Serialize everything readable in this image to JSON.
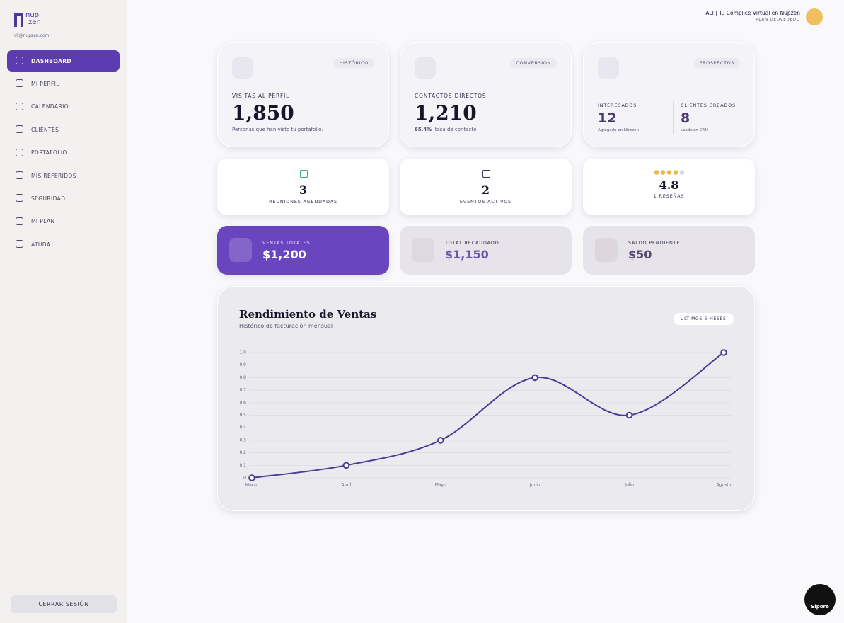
{
  "sidebar": {
    "logo": [
      "nup",
      "zen"
    ],
    "email": "cli@nupzen.com",
    "menu": [
      "DASHBOARD",
      "MI PERFIL",
      "CALENDARIO",
      "CLIENTES",
      "PORTAFOLIO",
      "MIS REFERIDOS",
      "SEGURIDAD",
      "MI PLAN",
      "ATUDA"
    ],
    "logout": "CERRAR SESIÓN"
  },
  "header": {
    "title": "ALI | Tu Cómplice Virtual en Nupzen",
    "plan": "PLAN DEDVEDEDO"
  },
  "top_cards": [
    {
      "badge": "HISTÓRICO",
      "label": "VISITAS AL PERFIL",
      "value": "1,850",
      "note": "Personas que han visto tu portafolio."
    },
    {
      "badge": "CONVERSIÓN",
      "label": "CONTACTOS DIRECTOS",
      "value": "1,210",
      "note_strong": "65.4%",
      "note": "tasa de contacto"
    },
    {
      "badge": "PROSPECTOS",
      "items": [
        {
          "label": "INTERESADOS",
          "value": "12",
          "note": "Agregado en Nirpzen"
        },
        {
          "label": "CLIENTES CREADOS",
          "value": "8",
          "note": "Leads en CRM"
        }
      ]
    }
  ],
  "mid_cards": [
    {
      "value": "3",
      "label": "REUNIONES AGENDADAS"
    },
    {
      "value": "2",
      "label": "EVENTOS ACTIVOS"
    },
    {
      "value": "4.8",
      "label": "1 RESEÑAS"
    }
  ],
  "money_cards": [
    {
      "label": "VENTAS TOTALES",
      "value": "$1,200"
    },
    {
      "label": "TOTAL RECAUDADO",
      "value": "$1,150"
    },
    {
      "label": "SALDO PENDIENTE",
      "value": "$50"
    }
  ],
  "chart_data": {
    "type": "line",
    "title": "Rendimiento de Ventas",
    "subtitle": "Histórico de facturación mensual",
    "badge": "ÚLTIMOS 6 MESES",
    "categories": [
      "Marzo",
      "Abril",
      "Mayo",
      "Junio",
      "Julio",
      "Agosto"
    ],
    "values": [
      0,
      0.1,
      0.3,
      0.8,
      0.5,
      {
        "value": 1,
        "label": "1.0"
      }
    ],
    "color": "#4a3a96",
    "ylim": [
      0,
      1
    ],
    "yticks": [
      0,
      0.1,
      0.2,
      0.3,
      0.4,
      0.5,
      0.6,
      0.7,
      0.8,
      0.9,
      {
        "value": 1,
        "label": "1.0"
      }
    ],
    "grid": true
  },
  "corner_badge": "Sipore"
}
